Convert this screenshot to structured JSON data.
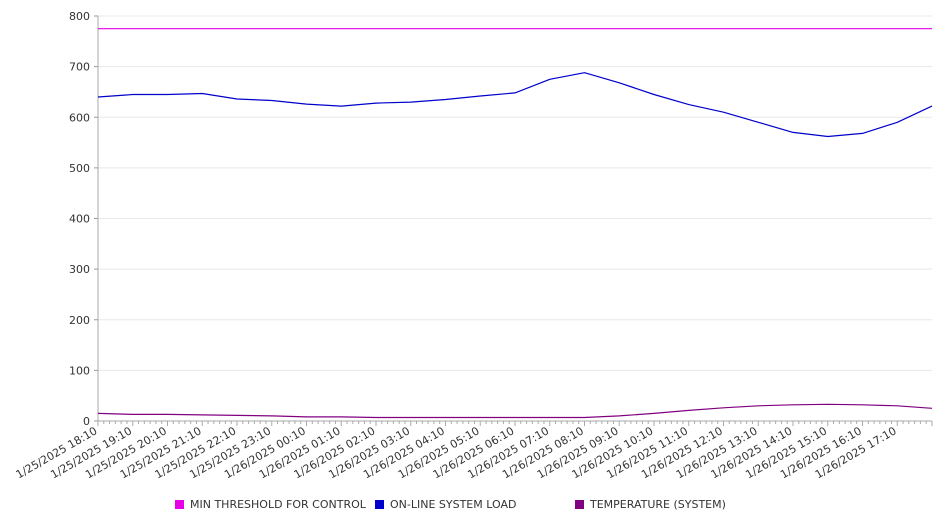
{
  "chart_data": {
    "type": "line",
    "ylim": [
      0,
      800
    ],
    "y_ticks": [
      "0",
      "100",
      "200",
      "300",
      "400",
      "500",
      "600",
      "700",
      "800"
    ],
    "x_tick_labels": [
      "1/25/2025 18:10",
      "1/25/2025 19:10",
      "1/25/2025 20:10",
      "1/25/2025 21:10",
      "1/25/2025 22:10",
      "1/25/2025 23:10",
      "1/26/2025 00:10",
      "1/26/2025 01:10",
      "1/26/2025 02:10",
      "1/26/2025 03:10",
      "1/26/2025 04:10",
      "1/26/2025 05:10",
      "1/26/2025 06:10",
      "1/26/2025 07:10",
      "1/26/2025 08:10",
      "1/26/2025 09:10",
      "1/26/2025 10:10",
      "1/26/2025 11:10",
      "1/26/2025 12:10",
      "1/26/2025 13:10",
      "1/26/2025 14:10",
      "1/26/2025 15:10",
      "1/26/2025 16:10",
      "1/26/2025 17:10"
    ],
    "grid": true,
    "legend_position": "bottom",
    "series": [
      {
        "name": "MIN THRESHOLD FOR CONTROL",
        "color": "#e600e6",
        "x": [
          "1/25/2025 18:10",
          "1/26/2025 18:10"
        ],
        "values": [
          775,
          775
        ]
      },
      {
        "name": "ON-LINE SYSTEM LOAD",
        "color": "#0000cc",
        "x": [
          "1/25/2025 18:10",
          "1/25/2025 19:10",
          "1/25/2025 20:10",
          "1/25/2025 21:10",
          "1/25/2025 22:10",
          "1/25/2025 23:10",
          "1/26/2025 00:10",
          "1/26/2025 01:10",
          "1/26/2025 02:10",
          "1/26/2025 03:10",
          "1/26/2025 04:10",
          "1/26/2025 05:10",
          "1/26/2025 06:10",
          "1/26/2025 07:10",
          "1/26/2025 08:10",
          "1/26/2025 09:10",
          "1/26/2025 10:10",
          "1/26/2025 11:10",
          "1/26/2025 12:10",
          "1/26/2025 13:10",
          "1/26/2025 14:10",
          "1/26/2025 15:10",
          "1/26/2025 16:10",
          "1/26/2025 17:10",
          "1/26/2025 18:10"
        ],
        "values": [
          640,
          645,
          645,
          647,
          636,
          633,
          626,
          622,
          628,
          630,
          635,
          642,
          648,
          675,
          688,
          668,
          645,
          625,
          610,
          590,
          570,
          562,
          568,
          590,
          622
        ]
      },
      {
        "name": "TEMPERATURE (SYSTEM)",
        "color": "#800080",
        "x": [
          "1/25/2025 18:10",
          "1/25/2025 19:10",
          "1/25/2025 20:10",
          "1/25/2025 21:10",
          "1/25/2025 22:10",
          "1/25/2025 23:10",
          "1/26/2025 00:10",
          "1/26/2025 01:10",
          "1/26/2025 02:10",
          "1/26/2025 03:10",
          "1/26/2025 04:10",
          "1/26/2025 05:10",
          "1/26/2025 06:10",
          "1/26/2025 07:10",
          "1/26/2025 08:10",
          "1/26/2025 09:10",
          "1/26/2025 10:10",
          "1/26/2025 11:10",
          "1/26/2025 12:10",
          "1/26/2025 13:10",
          "1/26/2025 14:10",
          "1/26/2025 15:10",
          "1/26/2025 16:10",
          "1/26/2025 17:10",
          "1/26/2025 18:10"
        ],
        "values": [
          15,
          13,
          13,
          12,
          11,
          10,
          8,
          8,
          7,
          7,
          7,
          7,
          7,
          7,
          7,
          10,
          15,
          21,
          26,
          30,
          32,
          33,
          32,
          30,
          25
        ]
      }
    ]
  }
}
